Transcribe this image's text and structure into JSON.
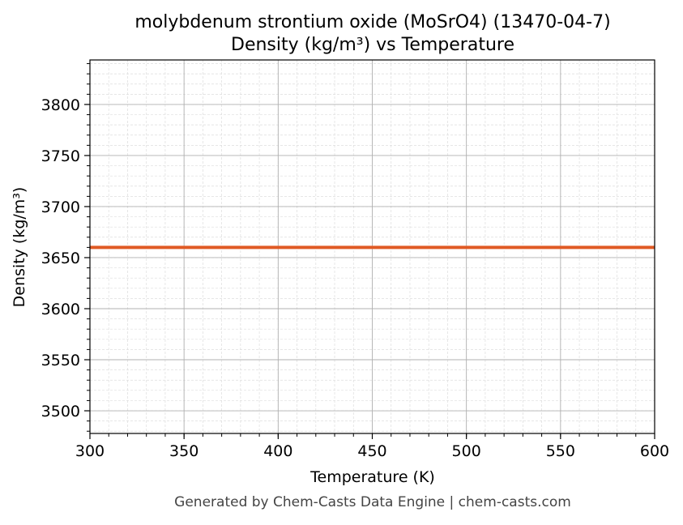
{
  "chart_data": {
    "type": "line",
    "title": "molybdenum strontium oxide (MoSrO4) (13470-04-7)",
    "subtitle": "Density (kg/m³) vs Temperature",
    "xlabel": "Temperature (K)",
    "ylabel": "Density (kg/m³)",
    "xlim": [
      300,
      600
    ],
    "ylim": [
      3477.8,
      3843.6
    ],
    "xticks": [
      300,
      350,
      400,
      450,
      500,
      550,
      600
    ],
    "yticks": [
      3500,
      3550,
      3600,
      3650,
      3700,
      3750,
      3800
    ],
    "grid": true,
    "series": [
      {
        "x": [
          300,
          600
        ],
        "y": [
          3660,
          3660
        ],
        "color": "#e05a24"
      }
    ]
  },
  "footer": "Generated by Chem-Casts Data Engine | chem-casts.com"
}
